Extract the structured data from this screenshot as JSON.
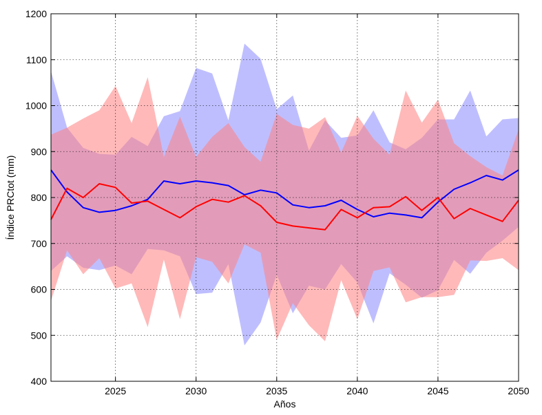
{
  "chart_data": {
    "type": "line",
    "title": "",
    "xlabel": "Años",
    "ylabel": "Índice PRCtot (mm)",
    "xlim": [
      2021,
      2050
    ],
    "ylim": [
      400,
      1200
    ],
    "x_ticks": [
      2025,
      2030,
      2035,
      2040,
      2045,
      2050
    ],
    "y_ticks": [
      400,
      500,
      600,
      700,
      800,
      900,
      1000,
      1100,
      1200
    ],
    "grid": true,
    "x": [
      2021,
      2022,
      2023,
      2024,
      2025,
      2026,
      2027,
      2028,
      2029,
      2030,
      2031,
      2032,
      2033,
      2034,
      2035,
      2036,
      2037,
      2038,
      2039,
      2040,
      2041,
      2042,
      2043,
      2044,
      2045,
      2046,
      2047,
      2048,
      2049,
      2050
    ],
    "series": [
      {
        "name": "blue",
        "line_color": "#0000ff",
        "band_color": "#8888ff",
        "values": [
          860,
          812,
          778,
          768,
          772,
          782,
          796,
          836,
          830,
          836,
          832,
          826,
          806,
          816,
          810,
          784,
          778,
          782,
          794,
          774,
          758,
          766,
          762,
          756,
          790,
          818,
          832,
          848,
          838,
          860
        ],
        "band_upper": [
          1075,
          952,
          908,
          895,
          893,
          932,
          912,
          977,
          988,
          1082,
          1070,
          968,
          1135,
          1102,
          992,
          1022,
          902,
          968,
          930,
          935,
          990,
          920,
          905,
          930,
          970,
          970,
          1033,
          933,
          970,
          973
        ],
        "band_lower": [
          640,
          672,
          647,
          642,
          652,
          633,
          688,
          685,
          672,
          590,
          593,
          655,
          478,
          528,
          632,
          548,
          608,
          600,
          655,
          615,
          526,
          635,
          610,
          582,
          598,
          664,
          634,
          680,
          706,
          736
        ]
      },
      {
        "name": "red",
        "line_color": "#ff0000",
        "band_color": "#ff8080",
        "values": [
          752,
          820,
          800,
          830,
          822,
          788,
          792,
          774,
          756,
          780,
          796,
          790,
          804,
          782,
          746,
          738,
          734,
          730,
          774,
          756,
          778,
          780,
          802,
          772,
          800,
          754,
          776,
          762,
          748,
          794
        ],
        "band_upper": [
          937,
          952,
          972,
          990,
          1043,
          962,
          1062,
          888,
          976,
          888,
          932,
          962,
          910,
          878,
          982,
          958,
          950,
          975,
          898,
          978,
          928,
          893,
          1033,
          963,
          1013,
          918,
          890,
          866,
          848,
          948
        ],
        "band_lower": [
          575,
          685,
          633,
          668,
          602,
          613,
          518,
          665,
          535,
          670,
          660,
          613,
          698,
          680,
          490,
          570,
          522,
          487,
          620,
          535,
          640,
          648,
          572,
          583,
          583,
          588,
          663,
          662,
          668,
          642
        ]
      }
    ]
  }
}
